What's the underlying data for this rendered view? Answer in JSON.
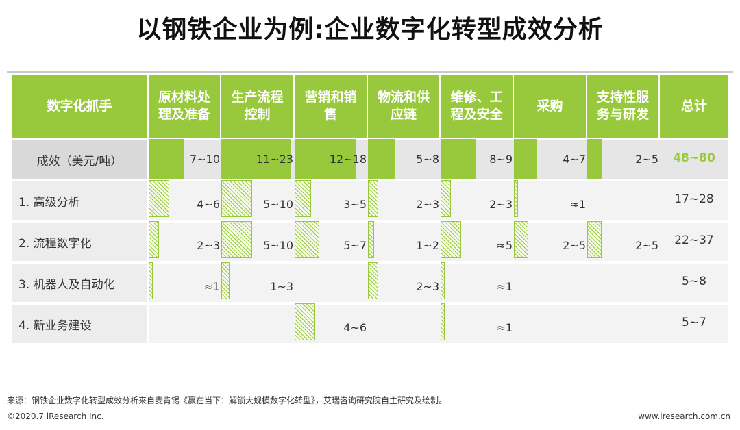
{
  "title": "以钢铁企业为例:企业数字化转型成效分析",
  "source": "来源：钢铁企业数字化转型成效分析来自麦肯锡《赢在当下：解锁大规模数字化转型》，艾瑞咨询研究院自主研究及绘制。",
  "copyright": "©2020.7 iResearch Inc.",
  "website": "www.iresearch.com.cn",
  "colors": {
    "accent": "#98c93c",
    "header_text": "#ffffff"
  },
  "chart_data": {
    "type": "table",
    "header_first": "数字化抓手",
    "columns": [
      "原材料处\n理及准备",
      "生产流程\n控制",
      "营销和销\n售",
      "物流和供\n应链",
      "维修、工\n程及安全",
      "采购",
      "支持性服\n务与研发"
    ],
    "total_header": "总计",
    "rows": [
      {
        "label": "成效（美元/吨）",
        "style": "solid",
        "total": "48~80",
        "cells": [
          {
            "text": "7~10",
            "v": 8.5
          },
          {
            "text": "11~23",
            "v": 17
          },
          {
            "text": "12~18",
            "v": 15
          },
          {
            "text": "5~8",
            "v": 6.5
          },
          {
            "text": "8~9",
            "v": 8.5
          },
          {
            "text": "4~7",
            "v": 5.5
          },
          {
            "text": "2~5",
            "v": 3.5
          }
        ]
      },
      {
        "label": "1. 高级分析",
        "style": "hatch",
        "total": "17~28",
        "cells": [
          {
            "text": "4~6",
            "v": 5
          },
          {
            "text": "5~10",
            "v": 7.5
          },
          {
            "text": "3~5",
            "v": 4
          },
          {
            "text": "2~3",
            "v": 2.5
          },
          {
            "text": "2~3",
            "v": 2.5
          },
          {
            "text": "≈1",
            "v": 1
          },
          null
        ]
      },
      {
        "label": "2. 流程数字化",
        "style": "hatch",
        "total": "22~37",
        "cells": [
          {
            "text": "2~3",
            "v": 2.5
          },
          {
            "text": "5~10",
            "v": 7.5
          },
          {
            "text": "5~7",
            "v": 6
          },
          {
            "text": "1~2",
            "v": 1.5
          },
          {
            "text": "≈5",
            "v": 5
          },
          {
            "text": "2~5",
            "v": 3.5
          },
          {
            "text": "2~5",
            "v": 3.5
          }
        ]
      },
      {
        "label": "3. 机器人及自动化",
        "style": "hatch",
        "total": "5~8",
        "cells": [
          {
            "text": "≈1",
            "v": 1
          },
          {
            "text": "1~3",
            "v": 2
          },
          null,
          {
            "text": "2~3",
            "v": 2.5
          },
          {
            "text": "≈1",
            "v": 1
          },
          null,
          null
        ]
      },
      {
        "label": "4. 新业务建设",
        "style": "hatch",
        "total": "5~7",
        "cells": [
          null,
          null,
          {
            "text": "4~6",
            "v": 5
          },
          null,
          {
            "text": "≈1",
            "v": 1
          },
          null,
          null
        ]
      }
    ]
  }
}
